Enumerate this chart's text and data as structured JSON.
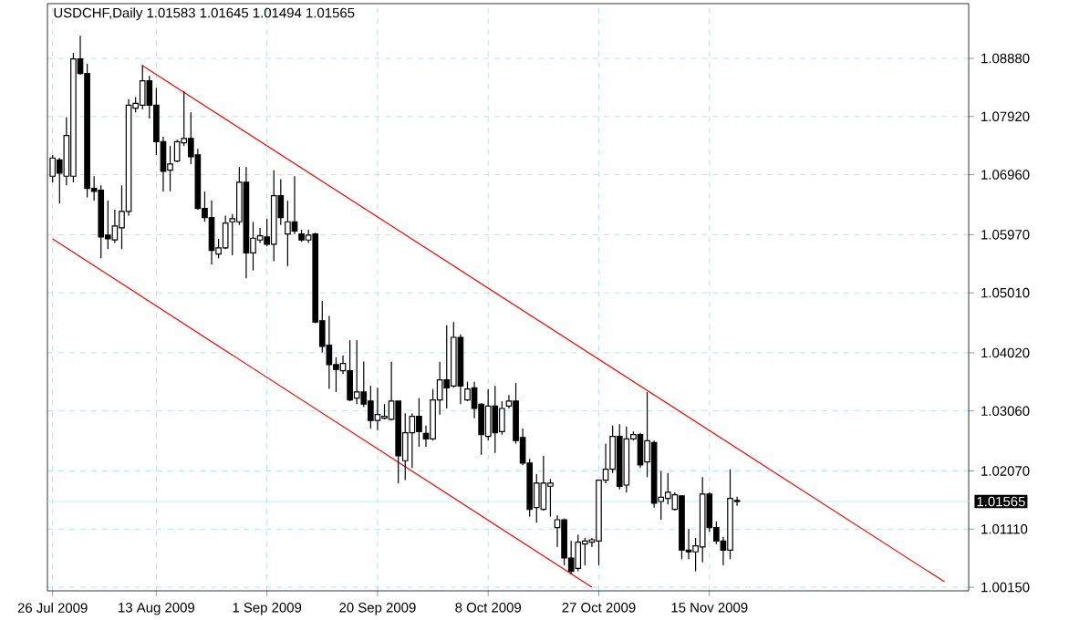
{
  "chart_data": {
    "type": "candlestick",
    "title": "USDCHF,Daily  1.01583 1.01645 1.01494 1.01565",
    "color": "#000000",
    "grid": true,
    "categories": [
      "26 Jul 2009",
      null,
      null,
      null,
      null,
      null,
      null,
      null,
      null,
      null,
      null,
      null,
      null,
      null,
      null,
      "13 Aug 2009",
      null,
      null,
      null,
      null,
      null,
      null,
      null,
      null,
      null,
      null,
      null,
      null,
      null,
      null,
      null,
      "1 Sep 2009",
      null,
      null,
      null,
      null,
      null,
      null,
      null,
      null,
      null,
      null,
      null,
      null,
      null,
      null,
      null,
      "20 Sep 2009",
      null,
      null,
      null,
      null,
      null,
      null,
      null,
      null,
      null,
      null,
      null,
      null,
      null,
      null,
      null,
      "8 Oct 2009",
      null,
      null,
      null,
      null,
      null,
      null,
      null,
      null,
      null,
      null,
      null,
      null,
      null,
      null,
      null,
      "27 Oct 2009",
      null,
      null,
      null,
      null,
      null,
      null,
      null,
      null,
      null,
      null,
      null,
      null,
      null,
      null,
      null,
      "15 Nov 2009",
      null,
      null,
      null,
      null,
      null,
      null,
      null,
      null,
      null,
      null,
      null,
      null,
      null,
      null,
      null,
      null,
      null,
      null,
      null,
      null,
      null,
      null,
      null,
      null,
      null,
      null,
      null,
      null,
      null,
      null,
      null,
      null,
      null,
      null,
      null,
      null,
      null
    ],
    "ohlc": [
      [
        1.06935,
        1.07286,
        1.06834,
        1.07236
      ],
      [
        1.07205,
        1.07236,
        1.06483,
        1.06985
      ],
      [
        1.06935,
        1.07908,
        1.06784,
        1.07607
      ],
      [
        1.06935,
        1.08971,
        1.06834,
        1.0887
      ],
      [
        1.0887,
        1.09252,
        1.0861,
        1.0863
      ],
      [
        1.0863,
        1.0879,
        1.06584,
        1.06734
      ],
      [
        1.06734,
        1.06935,
        1.06533,
        1.06684
      ],
      [
        1.06704,
        1.06784,
        1.05581,
        1.05932
      ],
      [
        1.05962,
        1.06533,
        1.05731,
        1.05902
      ],
      [
        1.05882,
        1.06383,
        1.05831,
        1.06112
      ],
      [
        1.06082,
        1.06784,
        1.05731,
        1.06353
      ],
      [
        1.06353,
        1.08208,
        1.06283,
        1.08108
      ],
      [
        1.08058,
        1.08239,
        1.07988,
        1.08138
      ],
      [
        1.08108,
        1.0877,
        1.08038,
        1.08509
      ],
      [
        1.08509,
        1.0859,
        1.07887,
        1.08108
      ],
      [
        1.08108,
        1.08389,
        1.07286,
        1.07506
      ],
      [
        1.07506,
        1.07587,
        1.06684,
        1.07015
      ],
      [
        1.07035,
        1.07436,
        1.06684,
        1.07135
      ],
      [
        1.07185,
        1.07536,
        1.07165,
        1.07506
      ],
      [
        1.07486,
        1.08339,
        1.07436,
        1.07557
      ],
      [
        1.07557,
        1.07988,
        1.07135,
        1.07256
      ],
      [
        1.07286,
        1.07386,
        1.06383,
        1.06403
      ],
      [
        1.06403,
        1.06684,
        1.06182,
        1.06253
      ],
      [
        1.06253,
        1.06533,
        1.0548,
        1.05711
      ],
      [
        1.05651,
        1.05902,
        1.05581,
        1.05751
      ],
      [
        1.05751,
        1.06283,
        1.05731,
        1.06162
      ],
      [
        1.06182,
        1.06312,
        1.0563,
        1.06232
      ],
      [
        1.06182,
        1.07084,
        1.06131,
        1.06834
      ],
      [
        1.06834,
        1.07084,
        1.05249,
        1.0567
      ],
      [
        1.0567,
        1.06182,
        1.05379,
        1.05911
      ],
      [
        1.05881,
        1.06081,
        1.05831,
        1.05951
      ],
      [
        1.05931,
        1.06232,
        1.0578,
        1.05811
      ],
      [
        1.05811,
        1.07034,
        1.0553,
        1.06613
      ],
      [
        1.06613,
        1.06884,
        1.06131,
        1.06252
      ],
      [
        1.05981,
        1.06533,
        1.05449,
        1.06182
      ],
      [
        1.06182,
        1.06934,
        1.05981,
        1.06031
      ],
      [
        1.05981,
        1.06051,
        1.05851,
        1.05881
      ],
      [
        1.05881,
        1.06051,
        1.05831,
        1.05961
      ],
      [
        1.05981,
        1.06001,
        1.04507,
        1.04527
      ],
      [
        1.04547,
        1.04878,
        1.04025,
        1.04125
      ],
      [
        1.04145,
        1.04627,
        1.03423,
        1.03825
      ],
      [
        1.03825,
        1.03945,
        1.03373,
        1.03744
      ],
      [
        1.03724,
        1.03975,
        1.03674,
        1.03845
      ],
      [
        1.03724,
        1.04226,
        1.03223,
        1.03243
      ],
      [
        1.03273,
        1.04226,
        1.03173,
        1.03373
      ],
      [
        1.03373,
        1.03875,
        1.03122,
        1.03173
      ],
      [
        1.03223,
        1.03474,
        1.02771,
        1.02902
      ],
      [
        1.02902,
        1.03444,
        1.02741,
        1.03002
      ],
      [
        1.02942,
        1.03173,
        1.02922,
        1.02972
      ],
      [
        1.02921,
        1.03874,
        1.02901,
        1.03222
      ],
      [
        1.03222,
        1.03222,
        1.01868,
        1.02319
      ],
      [
        1.02239,
        1.03021,
        1.01918,
        1.027
      ],
      [
        1.027,
        1.03021,
        1.02118,
        1.02971
      ],
      [
        1.02971,
        1.03272,
        1.02469,
        1.0272
      ],
      [
        1.0269,
        1.0282,
        1.02469,
        1.026
      ],
      [
        1.026,
        1.03422,
        1.0257,
        1.03242
      ],
      [
        1.03242,
        1.03874,
        1.03001,
        1.03573
      ],
      [
        1.03573,
        1.04475,
        1.03101,
        1.03442
      ],
      [
        1.03472,
        1.04526,
        1.03442,
        1.04275
      ],
      [
        1.04275,
        1.04325,
        1.03172,
        1.03472
      ],
      [
        1.03242,
        1.03543,
        1.03222,
        1.03422
      ],
      [
        1.03442,
        1.03543,
        1.02941,
        1.03101
      ],
      [
        1.03172,
        1.03192,
        1.02339,
        1.0267
      ],
      [
        1.0264,
        1.03422,
        1.0257,
        1.03141
      ],
      [
        1.03141,
        1.03472,
        1.02369,
        1.027
      ],
      [
        1.0272,
        1.03222,
        1.0267,
        1.03101
      ],
      [
        1.03141,
        1.03322,
        1.03101,
        1.03222
      ],
      [
        1.03222,
        1.03523,
        1.0252,
        1.0257
      ],
      [
        1.0262,
        1.0277,
        1.02169,
        1.02199
      ],
      [
        1.02199,
        1.02269,
        1.01316,
        1.01436
      ],
      [
        1.01466,
        1.02018,
        1.01216,
        1.01868
      ],
      [
        1.01436,
        1.02319,
        1.01416,
        1.01868
      ],
      [
        1.01818,
        1.01938,
        1.01316,
        1.01868
      ],
      [
        1.01135,
        1.01336,
        1.00814,
        1.01265
      ],
      [
        1.01265,
        1.01285,
        1.00513,
        1.00633
      ],
      [
        1.00633,
        1.00914,
        1.00363,
        1.00413
      ],
      [
        1.00463,
        1.01015,
        1.00413,
        1.00894
      ],
      [
        1.00864,
        1.00964,
        1.00513,
        1.00914
      ],
      [
        1.00894,
        1.00964,
        1.00814,
        1.00934
      ],
      [
        1.00914,
        1.01917,
        1.00513,
        1.01917
      ],
      [
        1.01917,
        1.02519,
        1.01867,
        1.02098
      ],
      [
        1.02098,
        1.0282,
        1.02038,
        1.02639
      ],
      [
        1.02639,
        1.0284,
        1.01767,
        1.01817
      ],
      [
        1.01837,
        1.028,
        1.01717,
        1.02599
      ],
      [
        1.02599,
        1.0272,
        1.02569,
        1.0267
      ],
      [
        1.0267,
        1.027,
        1.02118,
        1.02168
      ],
      [
        1.02218,
        1.03372,
        1.01967,
        1.02569
      ],
      [
        1.02539,
        1.02569,
        1.01466,
        1.01536
      ],
      [
        1.01566,
        1.02068,
        1.01265,
        1.01636
      ],
      [
        1.01616,
        1.02038,
        1.01516,
        1.01717
      ],
      [
        1.01436,
        1.01717,
        1.01416,
        1.01677
      ],
      [
        1.01657,
        1.01667,
        1.00613,
        1.00764
      ],
      [
        1.00764,
        1.01115,
        1.00613,
        1.00734
      ],
      [
        1.00734,
        1.00964,
        1.00413,
        1.00834
      ],
      [
        1.00814,
        1.01967,
        1.00563,
        1.01687
      ],
      [
        1.01687,
        1.01717,
        1.01065,
        1.01135
      ],
      [
        1.01135,
        1.01235,
        1.00864,
        1.00914
      ],
      [
        1.00914,
        1.00984,
        1.00513,
        1.00764
      ],
      [
        1.00764,
        1.02098,
        1.00613,
        1.01616
      ],
      [
        1.01583,
        1.01645,
        1.01494,
        1.01565
      ],
      null,
      null,
      null,
      null,
      null,
      null,
      null,
      null,
      null,
      null,
      null,
      null,
      null,
      null,
      null,
      null,
      null,
      null,
      null,
      null,
      null,
      null,
      null,
      null,
      null,
      null,
      null,
      null,
      null,
      null,
      null,
      null,
      null
    ],
    "series": [
      {
        "type": "line",
        "color": "#ff0000",
        "values": [
          null,
          null,
          null,
          null,
          null,
          null,
          null,
          null,
          null,
          null,
          null,
          null,
          null,
          1.0876,
          null,
          null,
          null,
          null,
          null,
          null,
          null,
          null,
          null,
          null,
          null,
          null,
          null,
          null,
          null,
          null,
          null,
          null,
          null,
          null,
          null,
          null,
          null,
          null,
          null,
          null,
          null,
          null,
          null,
          null,
          null,
          null,
          null,
          null,
          null,
          null,
          null,
          null,
          null,
          null,
          null,
          null,
          null,
          null,
          null,
          null,
          null,
          null,
          null,
          null,
          null,
          null,
          null,
          null,
          null,
          null,
          null,
          null,
          null,
          null,
          null,
          null,
          null,
          null,
          null,
          null,
          null,
          null,
          null,
          null,
          null,
          null,
          null,
          null,
          null,
          null,
          null,
          null,
          null,
          null,
          null,
          null,
          null,
          null,
          null,
          null,
          null,
          null,
          null,
          null,
          null,
          null,
          null,
          null,
          null,
          null,
          null,
          null,
          null,
          null,
          null,
          null,
          null,
          null,
          null,
          null,
          null,
          null,
          null,
          null,
          null,
          null,
          null,
          null,
          null,
          1.0024,
          null,
          null,
          null
        ]
      },
      {
        "type": "line",
        "color": "#ff0000",
        "values": [
          1.059,
          null,
          null,
          null,
          null,
          null,
          null,
          null,
          null,
          null,
          null,
          null,
          null,
          null,
          null,
          null,
          null,
          null,
          null,
          null,
          null,
          null,
          null,
          null,
          null,
          null,
          null,
          null,
          null,
          null,
          null,
          null,
          null,
          null,
          null,
          null,
          null,
          null,
          null,
          null,
          null,
          null,
          null,
          null,
          null,
          null,
          null,
          null,
          null,
          null,
          null,
          null,
          null,
          null,
          null,
          null,
          null,
          null,
          null,
          null,
          null,
          null,
          null,
          null,
          null,
          null,
          null,
          null,
          null,
          null,
          null,
          null,
          null,
          null,
          null,
          null,
          null,
          null,
          1.0015,
          null,
          null,
          null,
          null,
          null,
          null,
          null,
          null,
          null,
          null,
          null,
          null,
          null,
          null,
          null,
          null,
          null,
          null,
          null,
          null,
          null,
          null,
          null,
          null,
          null,
          null,
          null,
          null,
          null,
          null,
          null,
          null,
          null,
          null,
          null,
          null,
          null,
          null,
          null,
          null,
          null,
          null,
          null,
          null,
          null,
          null,
          null,
          null,
          null,
          null,
          null,
          null,
          null,
          null
        ]
      }
    ],
    "ylim": [
      1.00091,
      1.09783
    ],
    "yticks": [
      {
        "value": 1.0888,
        "label": "1.08880"
      },
      {
        "value": 1.0792,
        "label": "1.07920"
      },
      {
        "value": 1.0696,
        "label": "1.06960"
      },
      {
        "value": 1.0597,
        "label": "1.05970"
      },
      {
        "value": 1.0501,
        "label": "1.05010"
      },
      {
        "value": 1.0402,
        "label": "1.04020"
      },
      {
        "value": 1.0306,
        "label": "1.03060"
      },
      {
        "value": 1.0207,
        "label": "1.02070"
      },
      {
        "value": 1.0111,
        "label": "1.01110"
      },
      {
        "value": 1.0015,
        "label": "1.00150"
      }
    ],
    "ref_lines": [
      {
        "axis": "y",
        "value": 1.01565,
        "label": "1.01565",
        "color": "#a8f0f0"
      }
    ]
  }
}
